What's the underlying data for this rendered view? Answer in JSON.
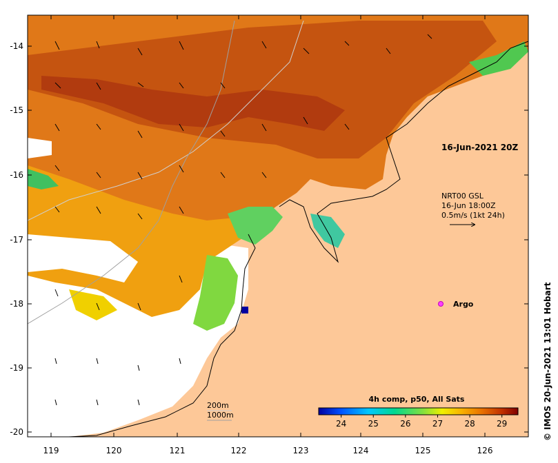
{
  "map": {
    "date_label": "16-Jun-2021 20Z",
    "current_info": [
      "NRT00 GSL",
      "16-Jun 18:00Z",
      "0.5m/s (1kt 24h)"
    ],
    "argo_label": "Argo",
    "credit": "© IMOS 20-Jun-2021 13:01 Hobart",
    "depth_labels": [
      "200m",
      "1000m"
    ],
    "lon_ticks": [
      "119",
      "120",
      "121",
      "122",
      "123",
      "124",
      "125",
      "126"
    ],
    "lat_ticks": [
      "-14",
      "-15",
      "-16",
      "-17",
      "-18",
      "-19",
      "-20"
    ],
    "colorbar": {
      "title": "4h comp, p50, All Sats",
      "ticks": [
        "24",
        "25",
        "26",
        "27",
        "28",
        "29"
      ],
      "range": [
        23.3,
        29.5
      ],
      "colors": [
        "#0000a0",
        "#0050ff",
        "#00c8ff",
        "#00d890",
        "#80e040",
        "#f0f000",
        "#f8b000",
        "#e87000",
        "#c03000",
        "#800000"
      ]
    },
    "colors": {
      "land": "#fdc898",
      "sea_warm": "#d06010",
      "sea_hot": "#a83010",
      "no_data": "#ffffff"
    }
  }
}
